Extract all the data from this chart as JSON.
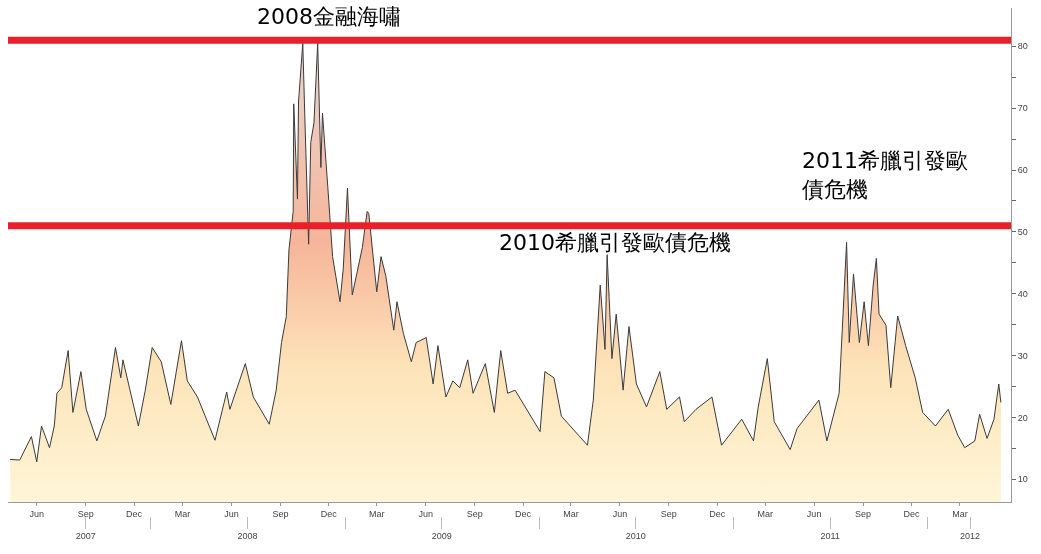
{
  "chart_data": {
    "type": "area",
    "x": [
      "2007-04-12",
      "2007-04-30",
      "2007-05-22",
      "2007-06-01",
      "2007-06-10",
      "2007-06-25",
      "2007-07-04",
      "2007-07-09",
      "2007-07-18",
      "2007-07-30",
      "2007-08-08",
      "2007-08-23",
      "2007-09-02",
      "2007-09-22",
      "2007-10-08",
      "2007-10-27",
      "2007-11-06",
      "2007-11-10",
      "2007-12-09",
      "2007-12-22",
      "2008-01-04",
      "2008-01-21",
      "2008-02-08",
      "2008-02-28",
      "2008-03-10",
      "2008-03-29",
      "2008-05-01",
      "2008-05-23",
      "2008-05-29",
      "2008-06-27",
      "2008-07-12",
      "2008-08-11",
      "2008-08-24",
      "2008-09-03",
      "2008-09-12",
      "2008-09-17",
      "2008-09-25",
      "2008-09-26",
      "2008-10-03",
      "2008-10-05",
      "2008-10-13",
      "2008-10-17",
      "2008-10-24",
      "2008-10-28",
      "2008-11-03",
      "2008-11-10",
      "2008-11-16",
      "2008-11-19",
      "2008-11-29",
      "2008-12-08",
      "2008-12-22",
      "2008-12-28",
      "2009-01-05",
      "2009-01-14",
      "2009-02-02",
      "2009-02-11",
      "2009-02-14",
      "2009-03-01",
      "2009-03-09",
      "2009-03-18",
      "2009-04-02",
      "2009-04-08",
      "2009-04-20",
      "2009-05-05",
      "2009-05-14",
      "2009-06-02",
      "2009-06-15",
      "2009-06-24",
      "2009-07-09",
      "2009-07-22",
      "2009-08-04",
      "2009-08-19",
      "2009-08-29",
      "2009-09-21",
      "2009-10-08",
      "2009-10-20",
      "2009-11-02",
      "2009-11-16",
      "2010-01-02",
      "2010-01-11",
      "2010-01-28",
      "2010-02-11",
      "2010-04-01",
      "2010-04-12",
      "2010-04-25",
      "2010-05-04",
      "2010-05-08",
      "2010-05-17",
      "2010-05-25",
      "2010-06-07",
      "2010-06-18",
      "2010-07-02",
      "2010-07-21",
      "2010-08-15",
      "2010-08-28",
      "2010-09-21",
      "2010-09-30",
      "2010-10-22",
      "2010-11-21",
      "2010-12-09",
      "2011-01-16",
      "2011-02-07",
      "2011-02-16",
      "2011-03-05",
      "2011-03-18",
      "2011-04-17",
      "2011-04-30",
      "2011-06-10",
      "2011-06-25",
      "2011-07-18",
      "2011-08-01",
      "2011-08-06",
      "2011-08-14",
      "2011-08-25",
      "2011-09-03",
      "2011-09-11",
      "2011-09-20",
      "2011-09-26",
      "2011-10-01",
      "2011-10-14",
      "2011-10-23",
      "2011-11-05",
      "2011-11-20",
      "2011-12-08",
      "2011-12-22",
      "2012-01-15",
      "2012-02-08",
      "2012-02-26",
      "2012-03-10",
      "2012-03-29",
      "2012-04-07",
      "2012-04-21",
      "2012-05-04",
      "2012-05-13",
      "2012-05-17"
    ],
    "series": [
      {
        "color": "#3a3a3a",
        "values": [
          13.2,
          13.1,
          16.9,
          12.8,
          18.6,
          15.1,
          18.6,
          23.9,
          24.8,
          30.8,
          20.8,
          27.4,
          21.3,
          16.2,
          20.2,
          31.3,
          26.4,
          29.3,
          18.6,
          24.4,
          31.3,
          29,
          22.1,
          32.4,
          25.9,
          23.3,
          16.3,
          24.1,
          21.3,
          28.7,
          23.3,
          18.9,
          24.4,
          32.1,
          36.3,
          47.1,
          53.3,
          70.7,
          55.3,
          71,
          80.5,
          68.1,
          48,
          64.5,
          67.6,
          80.5,
          60.4,
          69.2,
          57.3,
          46,
          38.7,
          44,
          57.1,
          39.8,
          47.5,
          53.3,
          53,
          40.3,
          46,
          42.9,
          34.1,
          38.7,
          33.6,
          29,
          32.1,
          32.9,
          25.4,
          31.6,
          23.3,
          25.9,
          24.8,
          29.3,
          23.9,
          28.7,
          20.8,
          30.8,
          23.9,
          24.4,
          17.7,
          27.4,
          26.4,
          20.2,
          15.5,
          22.8,
          41.4,
          31,
          46.3,
          29.5,
          36.7,
          24.4,
          34.7,
          25.4,
          21.7,
          27.4,
          21.3,
          23.3,
          19.3,
          21.3,
          23.3,
          15.5,
          19.7,
          16.2,
          21.7,
          29.5,
          19.3,
          14.8,
          18.2,
          22.8,
          16.2,
          23.9,
          48.3,
          32.1,
          43.2,
          32.1,
          38.7,
          31.6,
          41.4,
          45.7,
          36.7,
          34.9,
          24.8,
          36.4,
          31.6,
          26.4,
          20.8,
          18.6,
          21.3,
          17.1,
          15.1,
          16.2,
          20.5,
          16.6,
          19.7,
          25.4,
          22.4
        ]
      }
    ],
    "xlim": [
      "2007-04-08",
      "2012-06-05"
    ],
    "xticks": [
      {
        "value": "2007-06-01",
        "label": "Jun"
      },
      {
        "value": "2007-09-01",
        "label": "Sep"
      },
      {
        "value": "2007-12-01",
        "label": "Dec"
      },
      {
        "value": "2008-03-01",
        "label": "Mar"
      },
      {
        "value": "2008-06-01",
        "label": "Jun"
      },
      {
        "value": "2008-09-01",
        "label": "Sep"
      },
      {
        "value": "2008-12-01",
        "label": "Dec"
      },
      {
        "value": "2009-03-01",
        "label": "Mar"
      },
      {
        "value": "2009-06-01",
        "label": "Jun"
      },
      {
        "value": "2009-09-01",
        "label": "Sep"
      },
      {
        "value": "2009-12-01",
        "label": "Dec"
      },
      {
        "value": "2010-03-01",
        "label": "Mar"
      },
      {
        "value": "2010-06-01",
        "label": "Jun"
      },
      {
        "value": "2010-09-01",
        "label": "Sep"
      },
      {
        "value": "2010-12-01",
        "label": "Dec"
      },
      {
        "value": "2011-03-01",
        "label": "Mar"
      },
      {
        "value": "2011-06-01",
        "label": "Jun"
      },
      {
        "value": "2011-09-01",
        "label": "Sep"
      },
      {
        "value": "2011-12-01",
        "label": "Dec"
      },
      {
        "value": "2012-03-01",
        "label": "Mar"
      }
    ],
    "x2lim": [
      "2007-04-08",
      "2012-06-05"
    ],
    "x2ticks": [
      {
        "value": "2007-09-01",
        "label": "2007"
      },
      {
        "value": "2008-01-01",
        "label": null
      },
      {
        "value": "2008-07-01",
        "label": "2008"
      },
      {
        "value": "2009-01-01",
        "label": null
      },
      {
        "value": "2009-07-01",
        "label": "2009"
      },
      {
        "value": "2010-01-01",
        "label": null
      },
      {
        "value": "2010-07-01",
        "label": "2010"
      },
      {
        "value": "2011-01-01",
        "label": null
      },
      {
        "value": "2011-07-01",
        "label": "2011"
      },
      {
        "value": "2012-01-01",
        "label": null
      },
      {
        "value": "2012-03-20",
        "label": "2012"
      }
    ],
    "ylim": [
      6.3,
      86.2
    ],
    "yticks": [
      10,
      {
        "value": 15,
        "label": null
      },
      20,
      {
        "value": 25,
        "label": null
      },
      30,
      {
        "value": 35,
        "label": null
      },
      40,
      {
        "value": 45,
        "label": null
      },
      50,
      {
        "value": 55,
        "label": null
      },
      60,
      {
        "value": 65,
        "label": null
      },
      70,
      {
        "value": 75,
        "label": null
      },
      80
    ],
    "ref_lines": [
      {
        "axis": "y",
        "value": 81,
        "color": "#e8202a"
      },
      {
        "axis": "y",
        "value": 51,
        "color": "#e8202a"
      }
    ],
    "annotations": [
      "2008金融海嘯",
      "2010希臘引發歐債危機",
      "2011希臘引發歐債危機"
    ],
    "grid": false
  }
}
